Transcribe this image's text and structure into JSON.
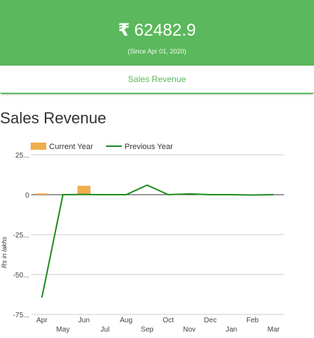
{
  "summary": {
    "currency_symbol": "₹",
    "amount": "62482.9",
    "since": "(Since Apr 01, 2020)"
  },
  "tab": {
    "label": "Sales Revenue"
  },
  "section": {
    "title": "Sales Revenue"
  },
  "chart_data": {
    "type": "bar",
    "categories": [
      "Apr",
      "May",
      "Jun",
      "Jul",
      "Aug",
      "Sep",
      "Oct",
      "Nov",
      "Dec",
      "Jan",
      "Feb",
      "Mar"
    ],
    "y_tick_labels": [
      "25...",
      "0",
      "-25...",
      "-50...",
      "-75..."
    ],
    "y_tick_values": [
      25,
      0,
      -25,
      -50,
      -75
    ],
    "ylim": [
      -75,
      25
    ],
    "ylabel": "Rs in lakhs",
    "grid": true,
    "legend_position": "top-left",
    "series": [
      {
        "name": "Current Year",
        "kind": "bar",
        "color": "#f0ad4e",
        "values": [
          0.8,
          0,
          5.6,
          0,
          0,
          0,
          0,
          0,
          0,
          0,
          0,
          0
        ]
      },
      {
        "name": "Previous Year",
        "kind": "line",
        "color": "#1e8a1e",
        "values": [
          -64.5,
          0,
          0.1,
          0,
          0,
          6,
          0,
          0.5,
          0,
          0,
          -0.2,
          0
        ]
      }
    ]
  }
}
